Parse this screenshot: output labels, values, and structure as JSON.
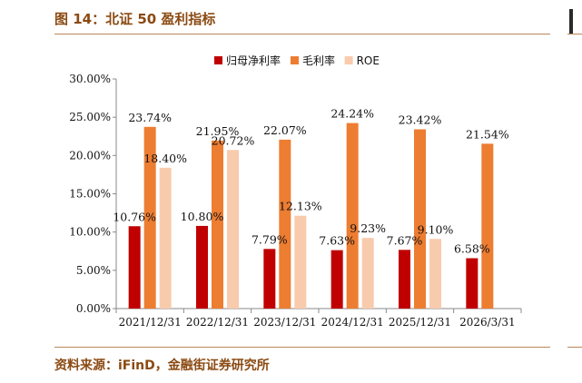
{
  "figure": {
    "title": "图 14：北证 50 盈利指标",
    "source": "资料来源：iFinD，金融街证券研究所"
  },
  "colors": {
    "net_margin": "#c00000",
    "gross_margin": "#ed7d31",
    "roe": "#f8cbad",
    "accent_text": "#8b4a12"
  },
  "chart_data": {
    "type": "bar",
    "categories": [
      "2021/12/31",
      "2022/12/31",
      "2023/12/31",
      "2024/12/31",
      "2025/12/31",
      "2026/3/31"
    ],
    "series": [
      {
        "name": "归母净利率",
        "values": [
          10.76,
          10.8,
          7.79,
          7.63,
          7.67,
          6.58
        ],
        "labels": [
          "10.76%",
          "10.80%",
          "7.79%",
          "7.63%",
          "7.67%",
          "6.58%"
        ]
      },
      {
        "name": "毛利率",
        "values": [
          23.74,
          21.95,
          22.07,
          24.24,
          23.42,
          21.54
        ],
        "labels": [
          "23.74%",
          "21.95%",
          "22.07%",
          "24.24%",
          "23.42%",
          "21.54%"
        ]
      },
      {
        "name": "ROE",
        "values": [
          18.4,
          20.72,
          12.13,
          9.23,
          9.1,
          null
        ],
        "labels": [
          "18.40%",
          "20.72%",
          "12.13%",
          "9.23%",
          "9.10%",
          null
        ]
      }
    ],
    "ylim": [
      0,
      30
    ],
    "yticks": [
      "0.00%",
      "5.00%",
      "10.00%",
      "15.00%",
      "20.00%",
      "25.00%",
      "30.00%"
    ],
    "legend_position": "top-center",
    "grid": false
  }
}
